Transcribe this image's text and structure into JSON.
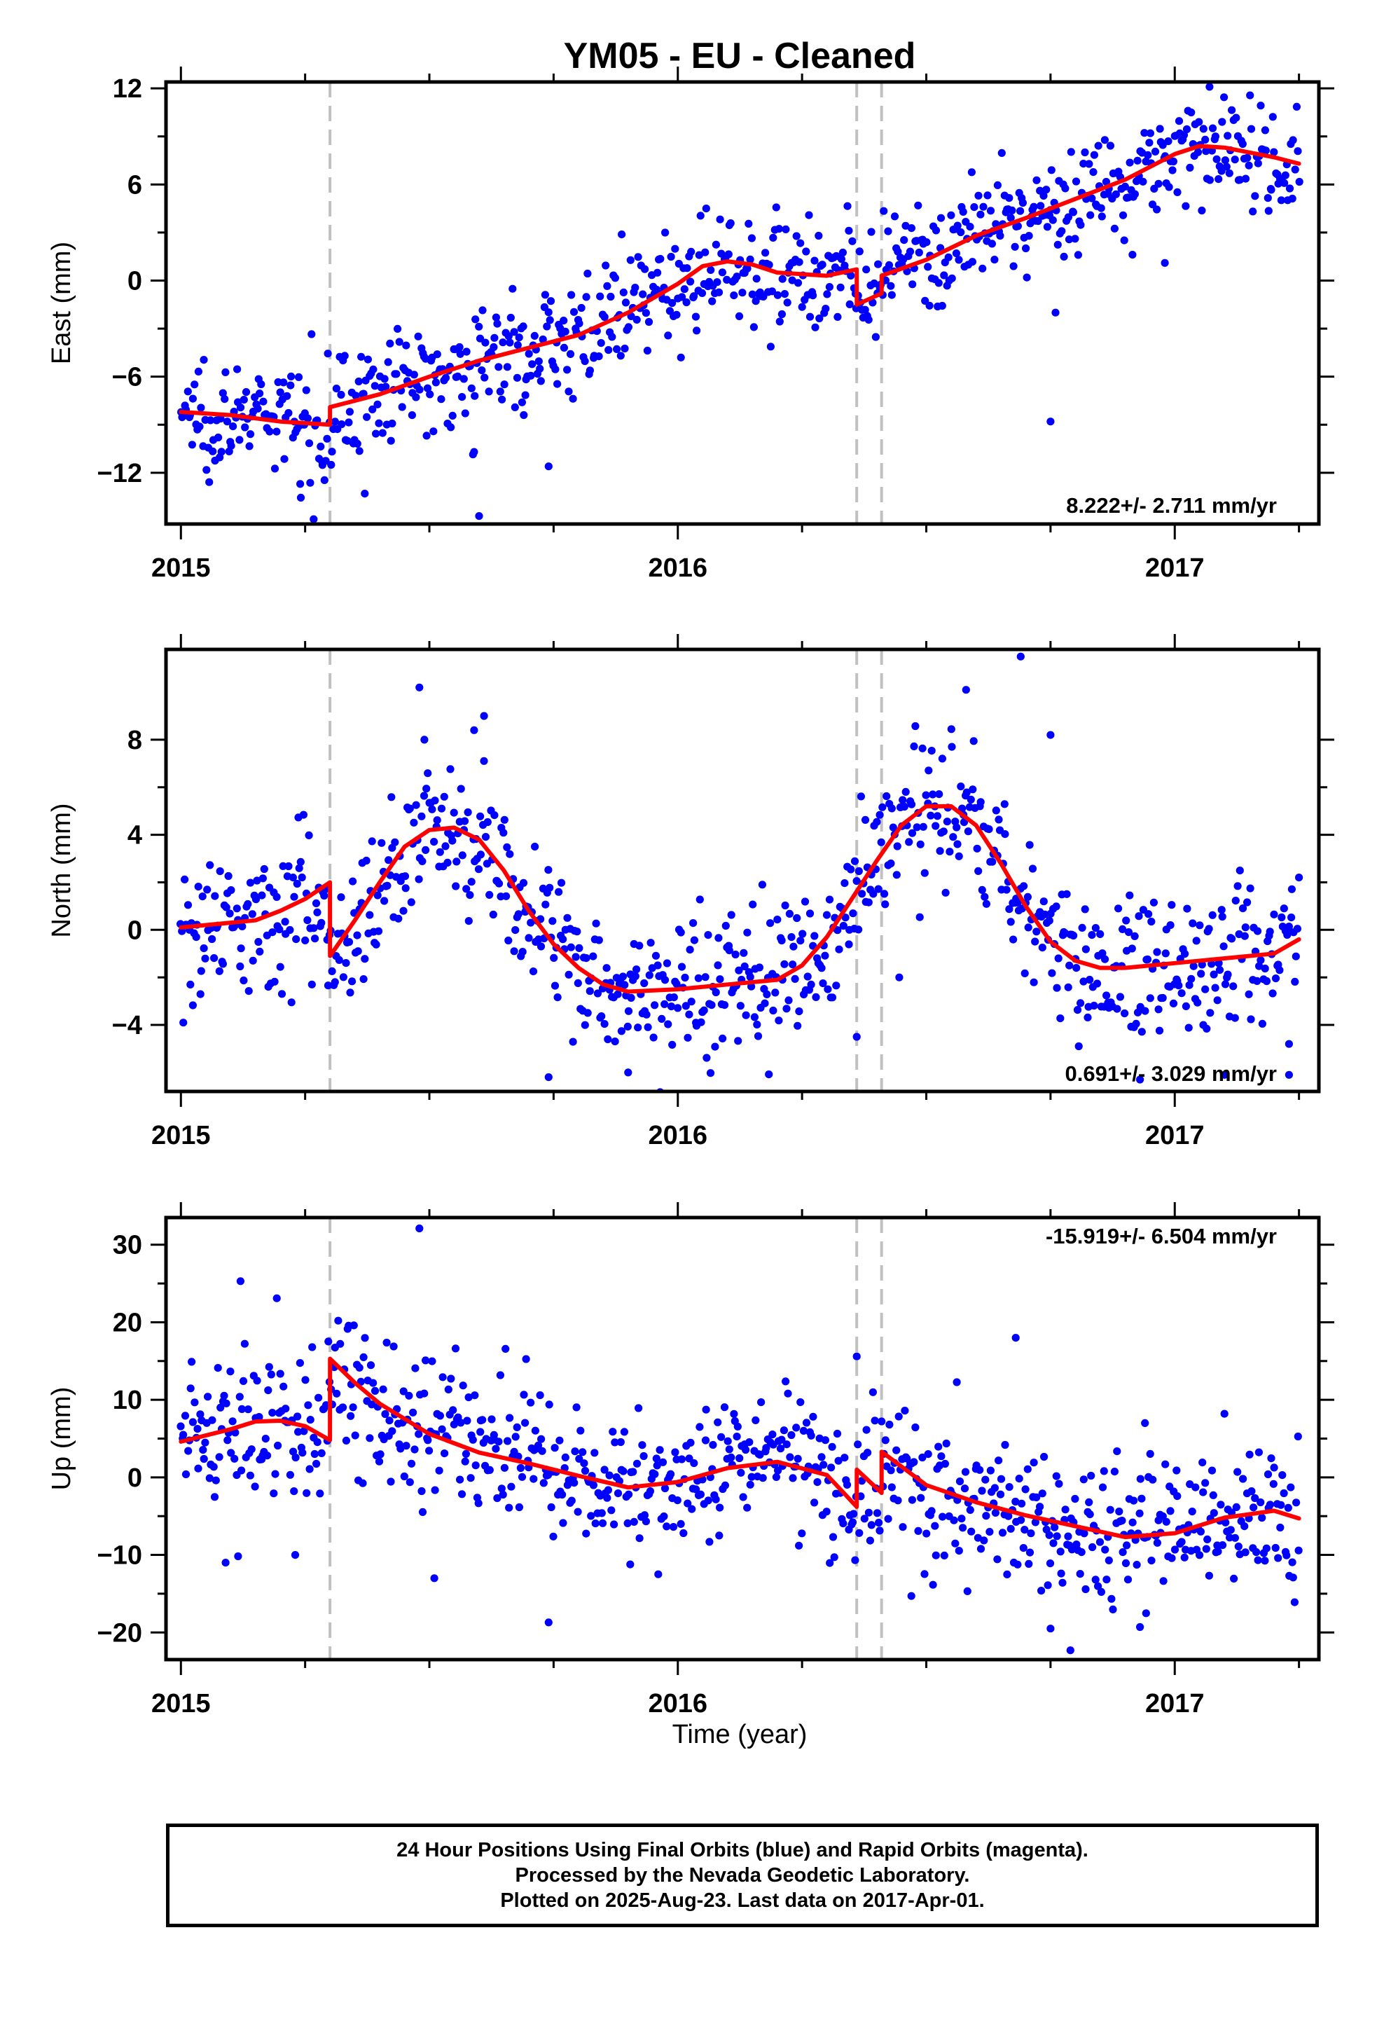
{
  "title": "YM05  - EU - Cleaned",
  "xlabel": "Time (year)",
  "footer": {
    "line1": "24 Hour Positions Using Final Orbits (blue) and Rapid Orbits (magenta).",
    "line2": "Processed by the Nevada Geodetic Laboratory.",
    "line3": "Plotted on 2025-Aug-23. Last data on 2017-Apr-01."
  },
  "colors": {
    "points": "#0000ff",
    "model": "#ff0000",
    "breaks": "#c0c0c0"
  },
  "chart_data": [
    {
      "type": "scatter",
      "ylabel": "East (mm)",
      "rate_label": "8.222+/- 2.711 mm/yr",
      "xlim": [
        2014.97,
        2017.29
      ],
      "ylim": [
        -15.2,
        12.4
      ],
      "x_ticks": [
        2015,
        2016,
        2017
      ],
      "x_tick_labels": [
        "2015",
        "2016",
        "2017"
      ],
      "y_ticks": [
        -12,
        -6,
        0,
        6,
        12
      ],
      "y_tick_labels": [
        "−12",
        "−6",
        "0",
        "6",
        "12"
      ],
      "breaks": [
        2015.3,
        2016.36,
        2016.41
      ],
      "model": [
        [
          2015.0,
          -8.2
        ],
        [
          2015.1,
          -8.4
        ],
        [
          2015.2,
          -8.8
        ],
        [
          2015.3,
          -9.0
        ],
        [
          2015.3001,
          -7.9
        ],
        [
          2015.4,
          -7.1
        ],
        [
          2015.5,
          -6.0
        ],
        [
          2015.6,
          -5.0
        ],
        [
          2015.7,
          -4.2
        ],
        [
          2015.8,
          -3.4
        ],
        [
          2015.9,
          -2.0
        ],
        [
          2016.0,
          -0.2
        ],
        [
          2016.05,
          0.9
        ],
        [
          2016.1,
          1.2
        ],
        [
          2016.15,
          1.0
        ],
        [
          2016.2,
          0.5
        ],
        [
          2016.3,
          0.3
        ],
        [
          2016.36,
          0.7
        ],
        [
          2016.3601,
          -1.5
        ],
        [
          2016.41,
          -0.8
        ],
        [
          2016.4101,
          0.3
        ],
        [
          2016.5,
          1.3
        ],
        [
          2016.6,
          2.8
        ],
        [
          2016.7,
          3.9
        ],
        [
          2016.8,
          5.1
        ],
        [
          2016.9,
          6.3
        ],
        [
          2017.0,
          7.9
        ],
        [
          2017.05,
          8.4
        ],
        [
          2017.1,
          8.3
        ],
        [
          2017.2,
          7.7
        ],
        [
          2017.25,
          7.3
        ]
      ],
      "anchors": [
        [
          2015.0,
          -8.2
        ],
        [
          2015.1,
          -8.4
        ],
        [
          2015.2,
          -8.8
        ],
        [
          2015.29,
          -9.0
        ],
        [
          2015.31,
          -7.9
        ],
        [
          2015.4,
          -7.1
        ],
        [
          2015.5,
          -6.0
        ],
        [
          2015.6,
          -5.0
        ],
        [
          2015.7,
          -4.2
        ],
        [
          2015.8,
          -3.4
        ],
        [
          2015.9,
          -2.0
        ],
        [
          2016.0,
          -0.2
        ],
        [
          2016.1,
          1.2
        ],
        [
          2016.2,
          0.5
        ],
        [
          2016.35,
          0.5
        ],
        [
          2016.37,
          -1.5
        ],
        [
          2016.4,
          -0.8
        ],
        [
          2016.42,
          0.3
        ],
        [
          2016.5,
          1.3
        ],
        [
          2016.6,
          2.8
        ],
        [
          2016.7,
          3.9
        ],
        [
          2016.8,
          5.1
        ],
        [
          2016.9,
          6.3
        ],
        [
          2017.0,
          7.9
        ],
        [
          2017.1,
          8.3
        ],
        [
          2017.25,
          7.3
        ]
      ],
      "scatter_sd": 1.7,
      "outliers": [
        [
          2015.24,
          -12.7
        ],
        [
          2015.37,
          -13.3
        ],
        [
          2015.59,
          -10.7
        ],
        [
          2015.6,
          -14.7
        ],
        [
          2015.74,
          -11.6
        ],
        [
          2015.69,
          -8.4
        ],
        [
          2016.75,
          -8.8
        ],
        [
          2016.98,
          1.1
        ],
        [
          2017.07,
          12.1
        ],
        [
          2016.76,
          -2.0
        ]
      ]
    },
    {
      "type": "scatter",
      "ylabel": "North (mm)",
      "rate_label": "0.691+/- 3.029 mm/yr",
      "xlim": [
        2014.97,
        2017.29
      ],
      "ylim": [
        -6.8,
        11.8
      ],
      "x_ticks": [
        2015,
        2016,
        2017
      ],
      "x_tick_labels": [
        "2015",
        "2016",
        "2017"
      ],
      "y_ticks": [
        -4,
        0,
        4,
        8
      ],
      "y_tick_labels": [
        "−4",
        "0",
        "4",
        "8"
      ],
      "breaks": [
        2015.3,
        2016.36,
        2016.41
      ],
      "model": [
        [
          2015.0,
          0.1
        ],
        [
          2015.05,
          0.2
        ],
        [
          2015.1,
          0.3
        ],
        [
          2015.15,
          0.4
        ],
        [
          2015.2,
          0.8
        ],
        [
          2015.25,
          1.3
        ],
        [
          2015.3,
          2.0
        ],
        [
          2015.3001,
          -1.1
        ],
        [
          2015.35,
          0.4
        ],
        [
          2015.4,
          2.0
        ],
        [
          2015.45,
          3.5
        ],
        [
          2015.5,
          4.2
        ],
        [
          2015.55,
          4.3
        ],
        [
          2015.6,
          3.8
        ],
        [
          2015.65,
          2.5
        ],
        [
          2015.7,
          0.8
        ],
        [
          2015.75,
          -0.6
        ],
        [
          2015.8,
          -1.6
        ],
        [
          2015.85,
          -2.3
        ],
        [
          2015.9,
          -2.6
        ],
        [
          2016.0,
          -2.5
        ],
        [
          2016.1,
          -2.3
        ],
        [
          2016.2,
          -2.1
        ],
        [
          2016.25,
          -1.5
        ],
        [
          2016.3,
          -0.3
        ],
        [
          2016.35,
          1.3
        ],
        [
          2016.4,
          2.9
        ],
        [
          2016.45,
          4.4
        ],
        [
          2016.5,
          5.2
        ],
        [
          2016.55,
          5.2
        ],
        [
          2016.6,
          4.4
        ],
        [
          2016.65,
          2.8
        ],
        [
          2016.7,
          1.0
        ],
        [
          2016.75,
          -0.5
        ],
        [
          2016.8,
          -1.3
        ],
        [
          2016.85,
          -1.6
        ],
        [
          2016.9,
          -1.6
        ],
        [
          2017.0,
          -1.4
        ],
        [
          2017.1,
          -1.2
        ],
        [
          2017.2,
          -1.0
        ],
        [
          2017.25,
          -0.4
        ]
      ],
      "anchors": [
        [
          2015.0,
          0.1
        ],
        [
          2015.1,
          0.3
        ],
        [
          2015.2,
          0.8
        ],
        [
          2015.29,
          2.0
        ],
        [
          2015.31,
          -1.1
        ],
        [
          2015.4,
          2.0
        ],
        [
          2015.5,
          4.2
        ],
        [
          2015.6,
          3.8
        ],
        [
          2015.7,
          0.8
        ],
        [
          2015.8,
          -1.6
        ],
        [
          2015.9,
          -2.6
        ],
        [
          2016.0,
          -2.5
        ],
        [
          2016.2,
          -2.1
        ],
        [
          2016.3,
          -0.3
        ],
        [
          2016.4,
          2.9
        ],
        [
          2016.5,
          5.2
        ],
        [
          2016.6,
          4.4
        ],
        [
          2016.7,
          1.0
        ],
        [
          2016.8,
          -1.3
        ],
        [
          2016.9,
          -1.6
        ],
        [
          2017.0,
          -1.4
        ],
        [
          2017.2,
          -1.0
        ],
        [
          2017.25,
          -0.4
        ]
      ],
      "scatter_sd": 1.5,
      "outliers": [
        [
          2015.48,
          10.2
        ],
        [
          2015.49,
          8.0
        ],
        [
          2015.59,
          8.4
        ],
        [
          2015.61,
          9.0
        ],
        [
          2015.74,
          -6.2
        ],
        [
          2015.9,
          -6.0
        ],
        [
          2016.36,
          -4.5
        ],
        [
          2016.69,
          11.5
        ],
        [
          2016.58,
          10.1
        ],
        [
          2016.75,
          8.2
        ],
        [
          2016.93,
          -6.3
        ],
        [
          2017.23,
          -4.8
        ],
        [
          2017.23,
          -6.1
        ],
        [
          2017.1,
          -6.1
        ]
      ]
    },
    {
      "type": "scatter",
      "ylabel": "Up (mm)",
      "rate_label": "-15.919+/- 6.504 mm/yr",
      "xlim": [
        2014.97,
        2017.29
      ],
      "ylim": [
        -23.5,
        33.5
      ],
      "x_ticks": [
        2015,
        2016,
        2017
      ],
      "x_tick_labels": [
        "2015",
        "2016",
        "2017"
      ],
      "y_ticks": [
        -20,
        -10,
        0,
        10,
        20,
        30
      ],
      "y_tick_labels": [
        "−20",
        "−10",
        "0",
        "10",
        "20",
        "30"
      ],
      "breaks": [
        2015.3,
        2016.36,
        2016.41
      ],
      "model": [
        [
          2015.0,
          4.6
        ],
        [
          2015.1,
          6.2
        ],
        [
          2015.15,
          7.2
        ],
        [
          2015.2,
          7.3
        ],
        [
          2015.25,
          6.6
        ],
        [
          2015.3,
          4.8
        ],
        [
          2015.3001,
          15.3
        ],
        [
          2015.35,
          12.2
        ],
        [
          2015.4,
          9.5
        ],
        [
          2015.5,
          5.6
        ],
        [
          2015.6,
          3.2
        ],
        [
          2015.7,
          1.8
        ],
        [
          2015.8,
          0.2
        ],
        [
          2015.9,
          -1.3
        ],
        [
          2016.0,
          -0.6
        ],
        [
          2016.1,
          1.2
        ],
        [
          2016.2,
          2.0
        ],
        [
          2016.3,
          0.3
        ],
        [
          2016.36,
          -3.8
        ],
        [
          2016.3601,
          1.0
        ],
        [
          2016.41,
          -2.0
        ],
        [
          2016.4101,
          3.3
        ],
        [
          2016.5,
          -1.0
        ],
        [
          2016.6,
          -3.2
        ],
        [
          2016.7,
          -4.9
        ],
        [
          2016.8,
          -6.3
        ],
        [
          2016.9,
          -7.7
        ],
        [
          2017.0,
          -7.2
        ],
        [
          2017.1,
          -5.2
        ],
        [
          2017.2,
          -4.3
        ],
        [
          2017.25,
          -5.3
        ]
      ],
      "anchors": [
        [
          2015.0,
          4.6
        ],
        [
          2015.1,
          6.2
        ],
        [
          2015.2,
          7.3
        ],
        [
          2015.29,
          4.8
        ],
        [
          2015.31,
          15.3
        ],
        [
          2015.4,
          9.5
        ],
        [
          2015.5,
          5.6
        ],
        [
          2015.6,
          3.2
        ],
        [
          2015.7,
          1.8
        ],
        [
          2015.8,
          0.2
        ],
        [
          2015.9,
          -1.3
        ],
        [
          2016.0,
          -0.6
        ],
        [
          2016.1,
          1.2
        ],
        [
          2016.2,
          2.0
        ],
        [
          2016.3,
          0.3
        ],
        [
          2016.35,
          -3.8
        ],
        [
          2016.37,
          1.0
        ],
        [
          2016.4,
          -2.0
        ],
        [
          2016.42,
          3.3
        ],
        [
          2016.5,
          -1.0
        ],
        [
          2016.6,
          -3.2
        ],
        [
          2016.7,
          -4.9
        ],
        [
          2016.8,
          -6.3
        ],
        [
          2016.9,
          -7.7
        ],
        [
          2017.0,
          -7.2
        ],
        [
          2017.1,
          -5.2
        ],
        [
          2017.2,
          -4.3
        ],
        [
          2017.25,
          -5.3
        ]
      ],
      "scatter_sd": 4.6,
      "outliers": [
        [
          2015.12,
          25.3
        ],
        [
          2015.09,
          -11.0
        ],
        [
          2015.23,
          -10.0
        ],
        [
          2015.48,
          32.1
        ],
        [
          2015.51,
          -13.0
        ],
        [
          2015.74,
          -18.7
        ],
        [
          2016.36,
          15.6
        ],
        [
          2016.47,
          -15.3
        ],
        [
          2016.68,
          18.0
        ],
        [
          2016.75,
          -19.5
        ],
        [
          2016.79,
          -22.3
        ],
        [
          2016.93,
          -19.3
        ],
        [
          2016.94,
          7.0
        ],
        [
          2017.1,
          8.2
        ]
      ]
    }
  ]
}
